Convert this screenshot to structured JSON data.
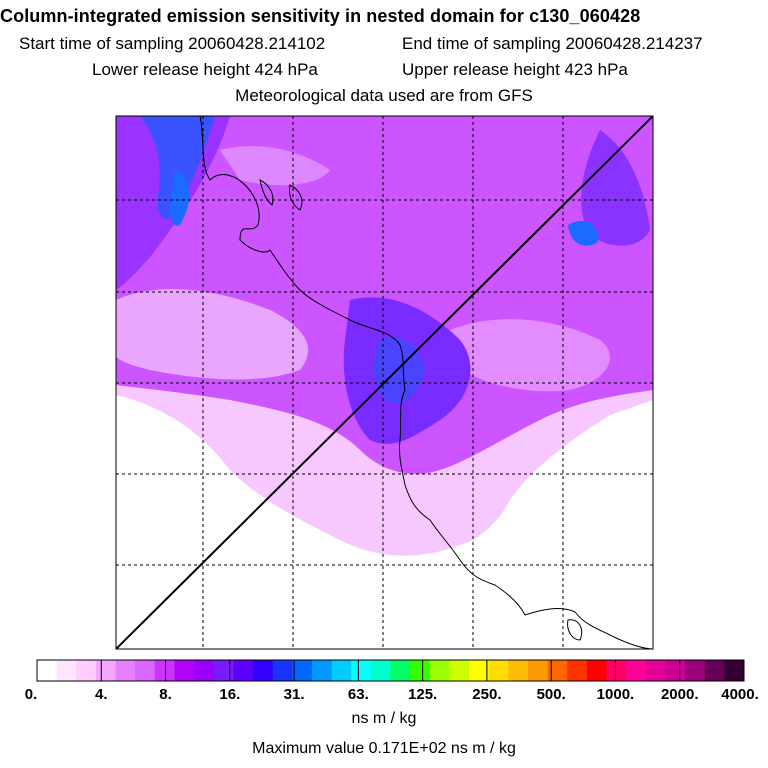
{
  "header": {
    "title": "Column-integrated emission sensitivity in nested domain for c130_060428",
    "start_time": "Start time of sampling 20060428.214102",
    "end_time": "End time of sampling 20060428.214237",
    "lower_height": "Lower release height  424 hPa",
    "upper_height": "Upper release height  423 hPa",
    "met_data": "Meteorological data used are from GFS"
  },
  "colorbar": {
    "labels": [
      "0.",
      "4.",
      "8.",
      "16.",
      "31.",
      "63.",
      "125.",
      "250.",
      "500.",
      "1000.",
      "2000.",
      "4000."
    ],
    "colors": [
      "#ffffff",
      "#ffe6ff",
      "#ffccff",
      "#f4a6ff",
      "#e680ff",
      "#d966ff",
      "#cc33ff",
      "#b300ff",
      "#9900ff",
      "#7a1aff",
      "#5c00ff",
      "#3300ff",
      "#1a33ff",
      "#0066ff",
      "#0099ff",
      "#00ccff",
      "#00ffff",
      "#00ffcc",
      "#00ff66",
      "#33ff00",
      "#99ff00",
      "#ccff00",
      "#ffff00",
      "#ffdd00",
      "#ffbb00",
      "#ff9900",
      "#ff6600",
      "#ff3300",
      "#ff0000",
      "#ff0066",
      "#ff0099",
      "#e6009a",
      "#cc0099",
      "#99007a",
      "#660055",
      "#330033"
    ]
  },
  "units": "ns m / kg",
  "max_value": "Maximum value  0.171E+02 ns m / kg"
}
